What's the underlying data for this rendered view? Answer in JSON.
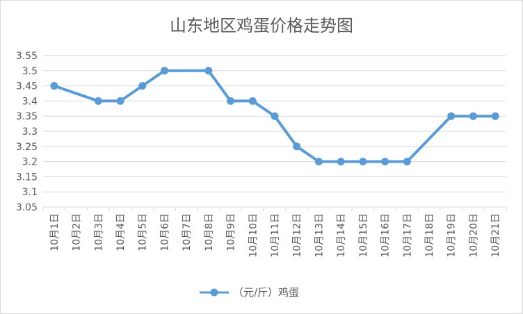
{
  "chart_data": {
    "type": "line",
    "title": "山东地区鸡蛋价格走势图",
    "categories": [
      "10月1日",
      "10月2日",
      "10月3日",
      "10月4日",
      "10月5日",
      "10月6日",
      "10月7日",
      "10月8日",
      "10月9日",
      "10月10日",
      "10月11日",
      "10月12日",
      "10月13日",
      "10月14日",
      "10月15日",
      "10月16日",
      "10月17日",
      "10月18日",
      "10月19日",
      "10月20日",
      "10月21日"
    ],
    "series": [
      {
        "name": "（元/斤）鸡蛋",
        "values": [
          3.45,
          null,
          3.4,
          3.4,
          3.45,
          3.5,
          null,
          3.5,
          3.4,
          3.4,
          3.35,
          3.25,
          3.2,
          3.2,
          3.2,
          3.2,
          3.2,
          null,
          3.35,
          3.35,
          3.35
        ]
      }
    ],
    "ylim": [
      3.05,
      3.55
    ],
    "yticks": [
      "3.05",
      "3.1",
      "3.15",
      "3.2",
      "3.25",
      "3.3",
      "3.35",
      "3.4",
      "3.45",
      "3.5",
      "3.55"
    ],
    "grid": true,
    "legend": "bottom",
    "color": "#5b9bd5"
  }
}
